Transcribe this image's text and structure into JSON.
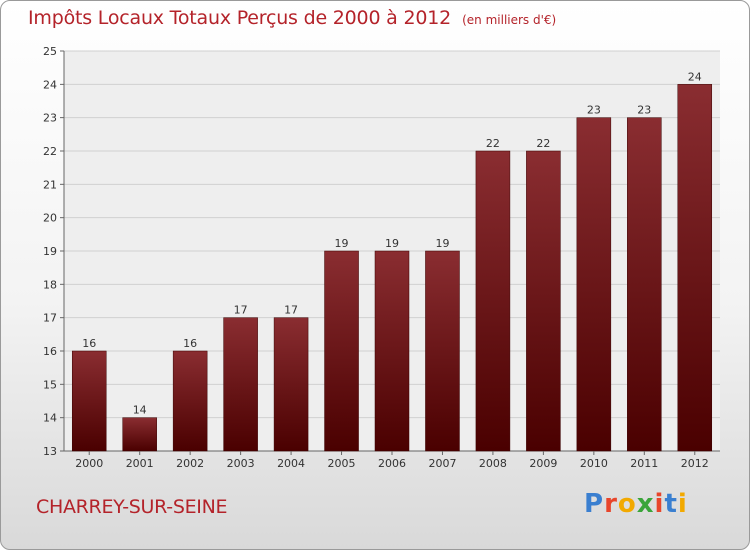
{
  "header": {
    "title": "Impôts Locaux Totaux Perçus de 2000 à 2012",
    "unit": "(en milliers d'€)"
  },
  "footer": {
    "commune": "CHARREY-SUR-SEINE",
    "logo_letters": [
      "P",
      "r",
      "o",
      "x",
      "i",
      "t",
      "i"
    ],
    "logo_colors": [
      "#3a7fd0",
      "#e8452b",
      "#f2a900",
      "#3aa53a",
      "#e8452b",
      "#3a7fd0",
      "#f2a900"
    ]
  },
  "chart_data": {
    "type": "bar",
    "title": "Impôts Locaux Totaux Perçus de 2000 à 2012",
    "categories": [
      "2000",
      "2001",
      "2002",
      "2003",
      "2004",
      "2005",
      "2006",
      "2007",
      "2008",
      "2009",
      "2010",
      "2011",
      "2012"
    ],
    "values": [
      16,
      14,
      16,
      17,
      17,
      19,
      19,
      19,
      22,
      22,
      23,
      23,
      24
    ],
    "ylim": [
      13,
      25
    ],
    "yticks": [
      13,
      14,
      15,
      16,
      17,
      18,
      19,
      20,
      21,
      22,
      23,
      24,
      25
    ],
    "grid": true,
    "bar_color": "#7a1010"
  }
}
